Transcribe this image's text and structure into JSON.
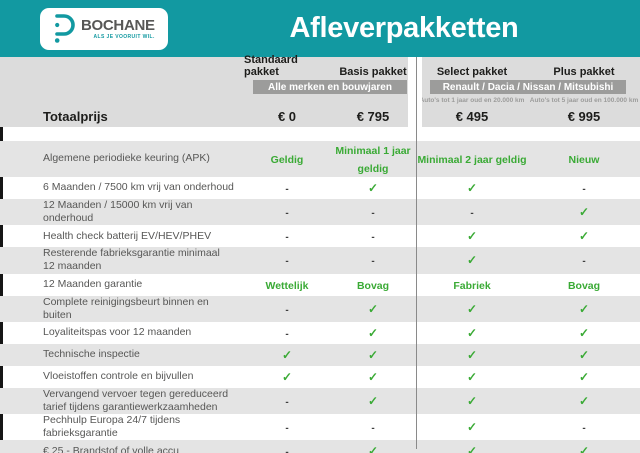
{
  "header": {
    "title": "Afleverpakketten",
    "logo": {
      "name": "BOCHANE",
      "tagline": "ALS JE VOORUIT WIL."
    }
  },
  "badges": {
    "left": "Alle merken en bouwjaren",
    "right": "Renault / Dacia / Nissan / Mitsubishi"
  },
  "columns": [
    {
      "name": "Standaard pakket",
      "price": "€ 0"
    },
    {
      "name": "Basis pakket",
      "price": "€ 795"
    },
    {
      "name": "Select pakket",
      "price": "€ 495",
      "note": "Auto's tot 1 jaar oud en 20.000 km"
    },
    {
      "name": "Plus pakket",
      "price": "€ 995",
      "note": "Auto's tot 5 jaar oud en 100.000 km"
    }
  ],
  "total_label": "Totaalprijs",
  "icons": {
    "check": "✓",
    "dash": "-"
  },
  "colors": {
    "teal": "#1299a1",
    "green": "#3aaa35",
    "band_gray": "#dcdcdc",
    "row_gray": "#e4e4e4",
    "badge_gray": "#9c9c9b",
    "text_gray": "#575756",
    "ink": "#1d1d1b"
  },
  "rows": [
    {
      "label": "Algemene periodieke keuring (APK)",
      "values": [
        "Geldig",
        "Minimaal 1 jaar geldig",
        "Minimaal 2 jaar geldig",
        "Nieuw"
      ]
    },
    {
      "label": "6 Maanden / 7500 km vrij van onderhoud",
      "values": [
        "-",
        "check",
        "check",
        "-"
      ]
    },
    {
      "label": "12 Maanden / 15000 km vrij van onderhoud",
      "values": [
        "-",
        "-",
        "-",
        "check"
      ]
    },
    {
      "label": "Health check batterij EV/HEV/PHEV",
      "values": [
        "-",
        "-",
        "check",
        "check"
      ]
    },
    {
      "label": "Resterende fabrieksgarantie minimaal 12 maanden",
      "values": [
        "-",
        "-",
        "check",
        "-"
      ]
    },
    {
      "label": "12 Maanden  garantie",
      "values": [
        "Wettelijk",
        "Bovag",
        "Fabriek",
        "Bovag"
      ]
    },
    {
      "label": "Complete reinigingsbeurt binnen en buiten",
      "values": [
        "-",
        "check",
        "check",
        "check"
      ]
    },
    {
      "label": "Loyaliteitspas voor 12 maanden",
      "values": [
        "-",
        "check",
        "check",
        "check"
      ]
    },
    {
      "label": "Technische inspectie",
      "values": [
        "check",
        "check",
        "check",
        "check"
      ]
    },
    {
      "label": "Vloeistoffen controle en bijvullen",
      "values": [
        "check",
        "check",
        "check",
        "check"
      ]
    },
    {
      "label": "Vervangend vervoer tegen gereduceerd tarief tijdens garantiewerkzaamheden",
      "values": [
        "-",
        "check",
        "check",
        "check"
      ]
    },
    {
      "label": "Pechhulp Europa 24/7 tijdens fabrieksgarantie",
      "values": [
        "-",
        "-",
        "check",
        "-"
      ]
    },
    {
      "label": "€ 25,- Brandstof of  volle accu",
      "values": [
        "-",
        "check",
        "check",
        "check"
      ]
    }
  ]
}
